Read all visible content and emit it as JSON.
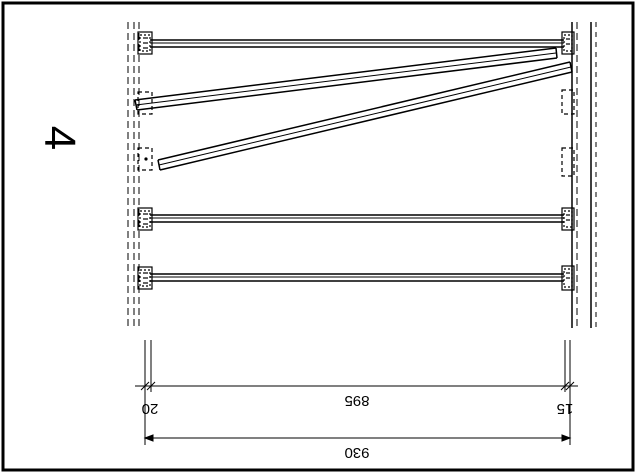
{
  "sheet": {
    "number": "4"
  },
  "dimensions": {
    "left_offset": "20",
    "clear_span": "895",
    "right_offset": "15",
    "overall_width": "930"
  }
}
